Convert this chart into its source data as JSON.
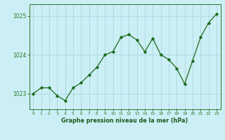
{
  "x": [
    0,
    1,
    2,
    3,
    4,
    5,
    6,
    7,
    8,
    9,
    10,
    11,
    12,
    13,
    14,
    15,
    16,
    17,
    18,
    19,
    20,
    21,
    22,
    23
  ],
  "y": [
    1023.0,
    1023.15,
    1023.15,
    1022.95,
    1022.82,
    1023.15,
    1023.28,
    1023.48,
    1023.68,
    1024.0,
    1024.08,
    1024.45,
    1024.52,
    1024.38,
    1024.08,
    1024.42,
    1024.0,
    1023.88,
    1023.65,
    1023.25,
    1023.85,
    1024.45,
    1024.82,
    1025.05
  ],
  "line_color": "#1a6b1a",
  "marker_color": "#1a6b1a",
  "bg_color": "#cceef5",
  "grid_color": "#aad8e0",
  "xlabel": "Graphe pression niveau de la mer (hPa)",
  "xlabel_color": "#1a5c1a",
  "tick_color": "#2a7a2a",
  "ylim_min": 1022.6,
  "ylim_max": 1025.3,
  "yticks": [
    1023,
    1024,
    1025
  ],
  "xlim_min": -0.5,
  "xlim_max": 23.5
}
